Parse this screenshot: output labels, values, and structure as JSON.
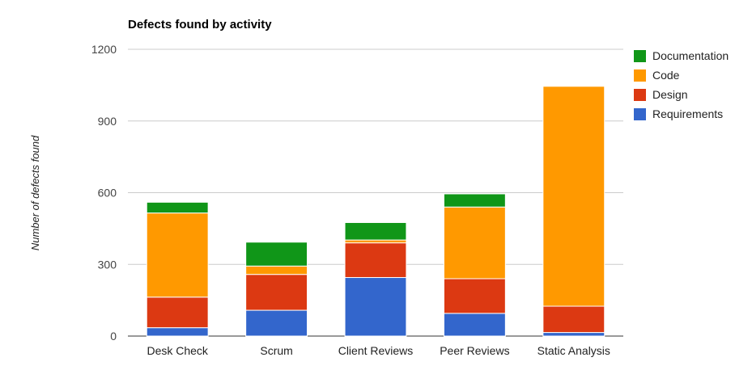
{
  "chart_data": {
    "type": "bar",
    "stacked": true,
    "title": "Defects found by activity",
    "xlabel": "",
    "ylabel": "Number of defects found",
    "ylim": [
      0,
      1200
    ],
    "yticks": [
      0,
      300,
      600,
      900,
      1200
    ],
    "grid": true,
    "legend": "right",
    "categories": [
      "Desk Check",
      "Scrum",
      "Client Reviews",
      "Peer Reviews",
      "Static Analysis"
    ],
    "series": [
      {
        "name": "Requirements",
        "color": "#3366cc",
        "values": [
          35,
          108,
          245,
          95,
          15
        ]
      },
      {
        "name": "Design",
        "color": "#dc3912",
        "values": [
          128,
          150,
          145,
          145,
          110
        ]
      },
      {
        "name": "Code",
        "color": "#ff9900",
        "values": [
          352,
          35,
          12,
          300,
          920
        ]
      },
      {
        "name": "Documentation",
        "color": "#109618",
        "values": [
          45,
          100,
          73,
          55,
          0
        ]
      }
    ]
  }
}
